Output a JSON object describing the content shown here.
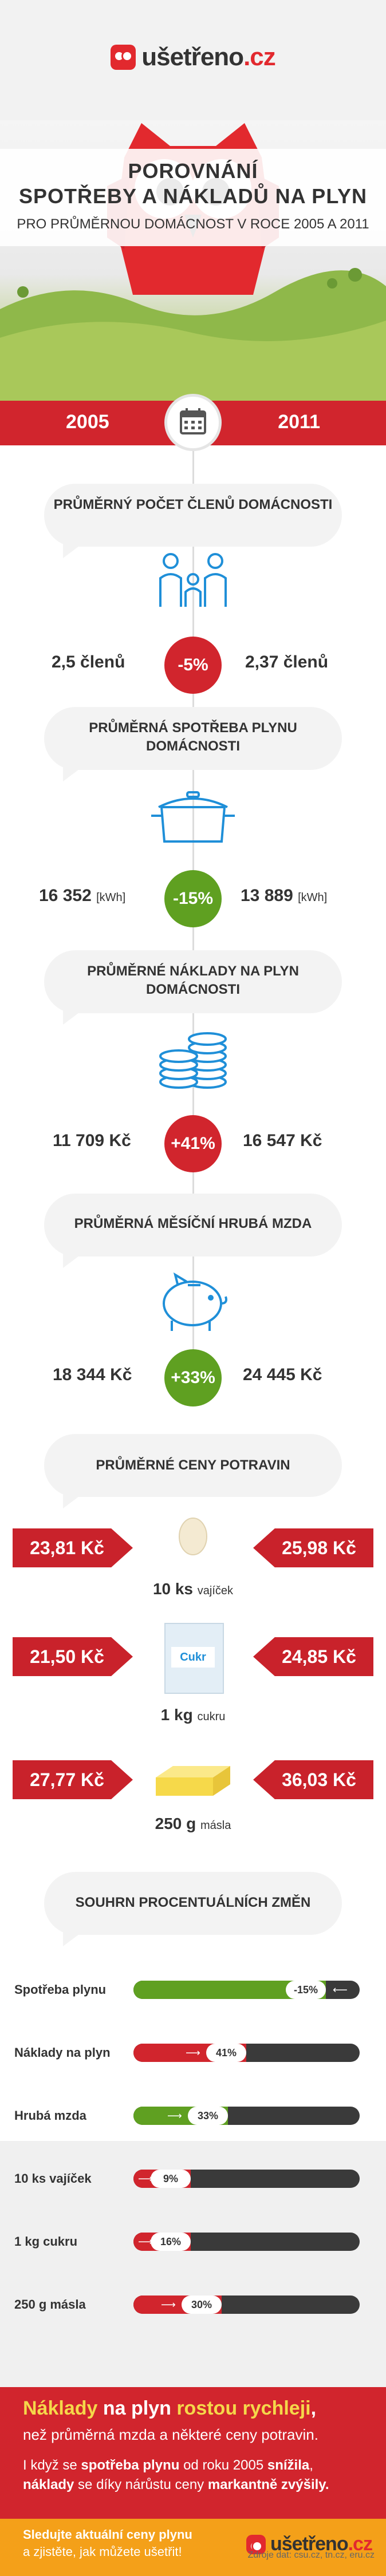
{
  "header": {
    "logo_main": "ušetřeno",
    "logo_tld": ".cz"
  },
  "hero": {
    "title_line1": "POROVNÁNÍ",
    "title_line2": "SPOTŘEBY A NÁKLADŮ NA PLYN",
    "subtitle": "PRO PRŮMĚRNOU DOMÁCNOST V ROCE 2005 A 2011"
  },
  "years": {
    "left": "2005",
    "right": "2011"
  },
  "sections": [
    {
      "title": "PRŮMĚRNÝ POČET ČLENŮ DOMÁCNOSTI",
      "left": "2,5 členů",
      "right": "2,37 členů",
      "change": "-5%",
      "change_color": "#d1252d",
      "icon": "family-icon"
    },
    {
      "title": "PRŮMĚRNÁ SPOTŘEBA PLYNU DOMÁCNOSTI",
      "left": "16 352",
      "left_unit": "[kWh]",
      "right": "13 889",
      "right_unit": "[kWh]",
      "change": "-15%",
      "change_color": "#5fa021",
      "icon": "pot-icon"
    },
    {
      "title": "PRŮMĚRNÉ NÁKLADY NA PLYN DOMÁCNOSTI",
      "left": "11 709 Kč",
      "right": "16 547 Kč",
      "change": "+41%",
      "change_color": "#d1252d",
      "icon": "coins-icon"
    },
    {
      "title": "PRŮMĚRNÁ MĚSÍČNÍ HRUBÁ MZDA",
      "left": "18 344 Kč",
      "right": "24 445 Kč",
      "change": "+33%",
      "change_color": "#5fa021",
      "icon": "piggy-bank-icon"
    }
  ],
  "food": {
    "title": "PRŮMĚRNÉ CENY POTRAVIN",
    "items": [
      {
        "left": "23,81 Kč",
        "right": "25,98 Kč",
        "qty": "10 ks",
        "name": "vajíček",
        "icon": "egg-icon"
      },
      {
        "left": "21,50 Kč",
        "right": "24,85 Kč",
        "qty": "1 kg",
        "name": "cukru",
        "icon": "sugar-icon",
        "label": "Cukr"
      },
      {
        "left": "27,77 Kč",
        "right": "36,03 Kč",
        "qty": "250 g",
        "name": "másla",
        "icon": "butter-icon"
      }
    ]
  },
  "summary": {
    "title": "SOUHRN PROCENTUÁLNÍCH ZMĚN",
    "rows": [
      {
        "label": "Spotřeba plynu",
        "value": "-15%",
        "fraction": 0.15,
        "color": "#5fa021",
        "direction": "down"
      },
      {
        "label": "Náklady na plyn",
        "value": "41%",
        "fraction": 0.41,
        "color": "#d1252d",
        "direction": "up"
      },
      {
        "label": "Hrubá mzda",
        "value": "33%",
        "fraction": 0.33,
        "color": "#5fa021",
        "direction": "up"
      },
      {
        "label": "10 ks vajíček",
        "value": "9%",
        "fraction": 0.09,
        "color": "#d1252d",
        "direction": "up"
      },
      {
        "label": "1 kg cukru",
        "value": "16%",
        "fraction": 0.16,
        "color": "#d1252d",
        "direction": "up"
      },
      {
        "label": "250 g másla",
        "value": "30%",
        "fraction": 0.3,
        "color": "#d1252d",
        "direction": "up"
      }
    ]
  },
  "conclusion": {
    "p1_a": "Náklady",
    "p1_b": " na plyn ",
    "p1_c": "rostou rychleji",
    "p1_d": ",",
    "p1_e": "než průměrná mzda a některé ceny potravin.",
    "p2_a": "I když se ",
    "p2_b": "spotřeba plynu",
    "p2_c": " od roku 2005 ",
    "p2_d": "snížila",
    "p2_e": ",",
    "p2_f": "náklady",
    "p2_g": " se díky nárůstu ceny ",
    "p2_h": "markantně zvýšily."
  },
  "cta": {
    "line1": "Sledujte aktuální ceny plynu",
    "line2": "a zjistěte, jak můžete ušetřit!"
  },
  "footer": {
    "logo_main": "ušetřeno",
    "logo_tld": ".cz",
    "source": "Zdroje dat: csu.cz, tn.cz, eru.cz"
  }
}
